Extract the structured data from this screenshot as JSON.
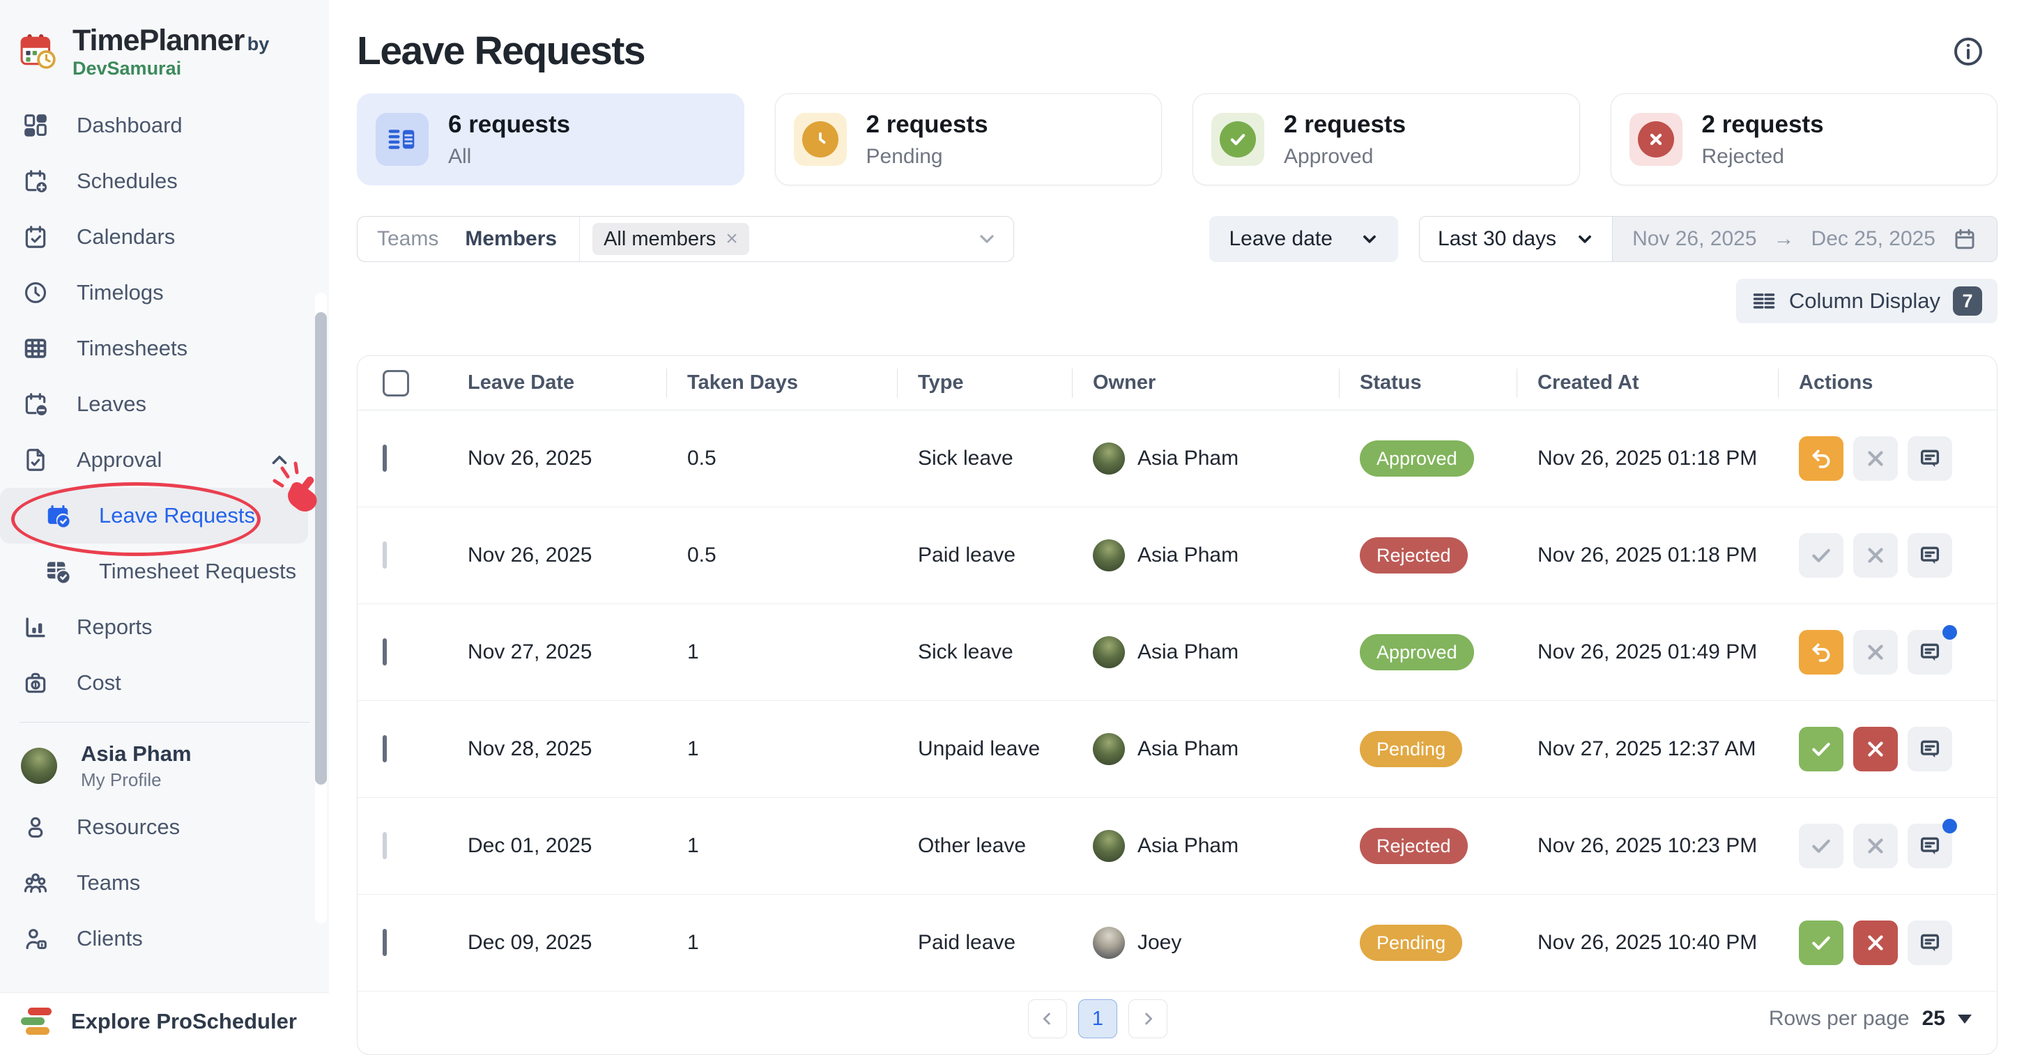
{
  "app": {
    "name": "TimePlanner",
    "byline_prefix": "by",
    "byline_brand": "DevSamurai"
  },
  "sidebar": {
    "items": [
      {
        "label": "Dashboard"
      },
      {
        "label": "Schedules"
      },
      {
        "label": "Calendars"
      },
      {
        "label": "Timelogs"
      },
      {
        "label": "Timesheets"
      },
      {
        "label": "Leaves"
      },
      {
        "label": "Approval"
      },
      {
        "label": "Leave Requests",
        "active": true
      },
      {
        "label": "Timesheet Requests"
      },
      {
        "label": "Reports"
      },
      {
        "label": "Cost"
      }
    ],
    "profile": {
      "name": "Asia Pham",
      "subtitle": "My Profile"
    },
    "items_bottom": [
      {
        "label": "Resources"
      },
      {
        "label": "Teams"
      },
      {
        "label": "Clients"
      }
    ],
    "footer": {
      "label": "Explore ProScheduler"
    }
  },
  "page": {
    "title": "Leave Requests"
  },
  "summary_cards": [
    {
      "count": "6 requests",
      "caption": "All",
      "variant": "all"
    },
    {
      "count": "2 requests",
      "caption": "Pending",
      "variant": "pending"
    },
    {
      "count": "2 requests",
      "caption": "Approved",
      "variant": "approved"
    },
    {
      "count": "2 requests",
      "caption": "Rejected",
      "variant": "rejected"
    }
  ],
  "filters": {
    "teams_label": "Teams",
    "members_label": "Members",
    "member_chip": "All members",
    "chip_remove": "×",
    "sort_label": "Leave date",
    "range_preset": "Last 30 days",
    "range_start": "Nov 26, 2025",
    "range_arrow": "→",
    "range_end": "Dec 25, 2025"
  },
  "column_display": {
    "label": "Column Display",
    "badge": "7"
  },
  "table": {
    "columns": [
      "Leave Date",
      "Taken Days",
      "Type",
      "Owner",
      "Status",
      "Created At",
      "Actions"
    ],
    "rows": [
      {
        "leave_date": "Nov 26, 2025",
        "taken_days": "0.5",
        "type": "Sick leave",
        "owner": "Asia Pham",
        "avatar": "asia",
        "status": "Approved",
        "created_at": "Nov 26, 2025 01:18 PM",
        "checkbox_muted": false,
        "approve_action": "undo-amber",
        "reject_action": "x-muted",
        "comment_dot": false
      },
      {
        "leave_date": "Nov 26, 2025",
        "taken_days": "0.5",
        "type": "Paid leave",
        "owner": "Asia Pham",
        "avatar": "asia",
        "status": "Rejected",
        "created_at": "Nov 26, 2025 01:18 PM",
        "checkbox_muted": true,
        "approve_action": "check-muted",
        "reject_action": "x-muted",
        "comment_dot": false
      },
      {
        "leave_date": "Nov 27, 2025",
        "taken_days": "1",
        "type": "Sick leave",
        "owner": "Asia Pham",
        "avatar": "asia",
        "status": "Approved",
        "created_at": "Nov 26, 2025 01:49 PM",
        "checkbox_muted": false,
        "approve_action": "undo-amber",
        "reject_action": "x-muted",
        "comment_dot": true
      },
      {
        "leave_date": "Nov 28, 2025",
        "taken_days": "1",
        "type": "Unpaid leave",
        "owner": "Asia Pham",
        "avatar": "asia",
        "status": "Pending",
        "created_at": "Nov 27, 2025 12:37 AM",
        "checkbox_muted": false,
        "approve_action": "check-green",
        "reject_action": "x-red",
        "comment_dot": false
      },
      {
        "leave_date": "Dec 01, 2025",
        "taken_days": "1",
        "type": "Other leave",
        "owner": "Asia Pham",
        "avatar": "asia",
        "status": "Rejected",
        "created_at": "Nov 26, 2025 10:23 PM",
        "checkbox_muted": true,
        "approve_action": "check-muted",
        "reject_action": "x-muted",
        "comment_dot": true
      },
      {
        "leave_date": "Dec 09, 2025",
        "taken_days": "1",
        "type": "Paid leave",
        "owner": "Joey",
        "avatar": "joey",
        "status": "Pending",
        "created_at": "Nov 26, 2025 10:40 PM",
        "checkbox_muted": false,
        "approve_action": "check-green",
        "reject_action": "x-red",
        "comment_dot": false
      }
    ]
  },
  "pagination": {
    "page": "1",
    "rows_per_page_label": "Rows per page",
    "rows_per_page_value": "25"
  },
  "colors": {
    "accent_blue": "#2563eb",
    "approved_green": "#81b45c",
    "rejected_red": "#bd5a56",
    "pending_amber": "#e1a843",
    "action_amber": "#f0a73d",
    "annotation_red": "#ea3f4f",
    "sidebar_bg": "#f7f8fa",
    "card_all_bg": "#e7edfb"
  }
}
